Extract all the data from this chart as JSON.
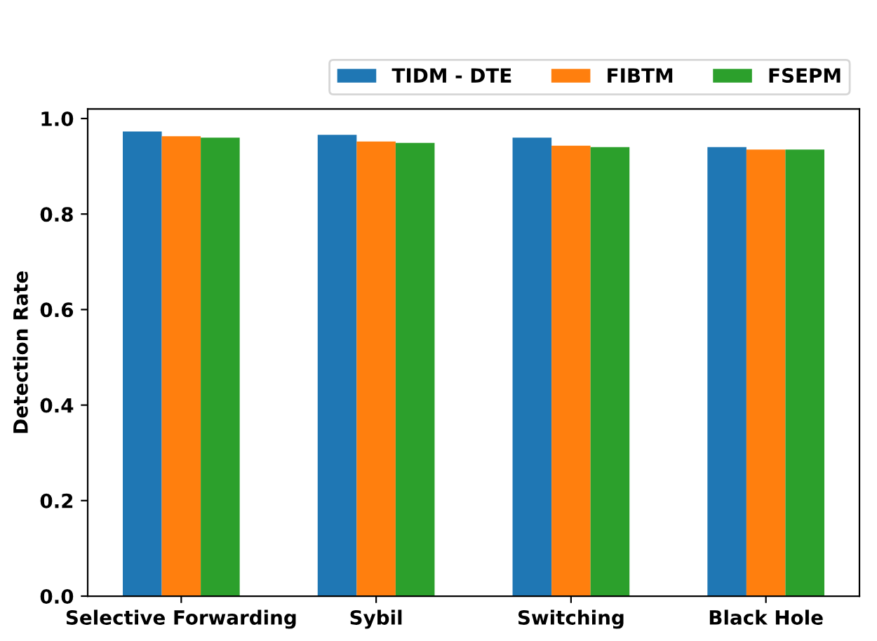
{
  "chart_data": {
    "type": "bar",
    "ylabel": "Detection Rate",
    "categories": [
      "Selective Forwarding",
      "Sybil",
      "Switching",
      "Black Hole"
    ],
    "series": [
      {
        "name": "TIDM - DTE",
        "color": "#1f77b4",
        "values": [
          0.973,
          0.966,
          0.96,
          0.94
        ]
      },
      {
        "name": "FIBTM",
        "color": "#ff7f0e",
        "values": [
          0.963,
          0.952,
          0.943,
          0.935
        ]
      },
      {
        "name": "FSEPM",
        "color": "#2ca02c",
        "values": [
          0.96,
          0.949,
          0.94,
          0.935
        ]
      }
    ],
    "ylim": [
      0,
      1.02
    ],
    "yticks": [
      {
        "value": 0,
        "label": "0.0"
      },
      0.2,
      0.4,
      0.6,
      0.8,
      {
        "value": 1,
        "label": "1.0"
      }
    ],
    "grid": false,
    "legend": "top right"
  }
}
